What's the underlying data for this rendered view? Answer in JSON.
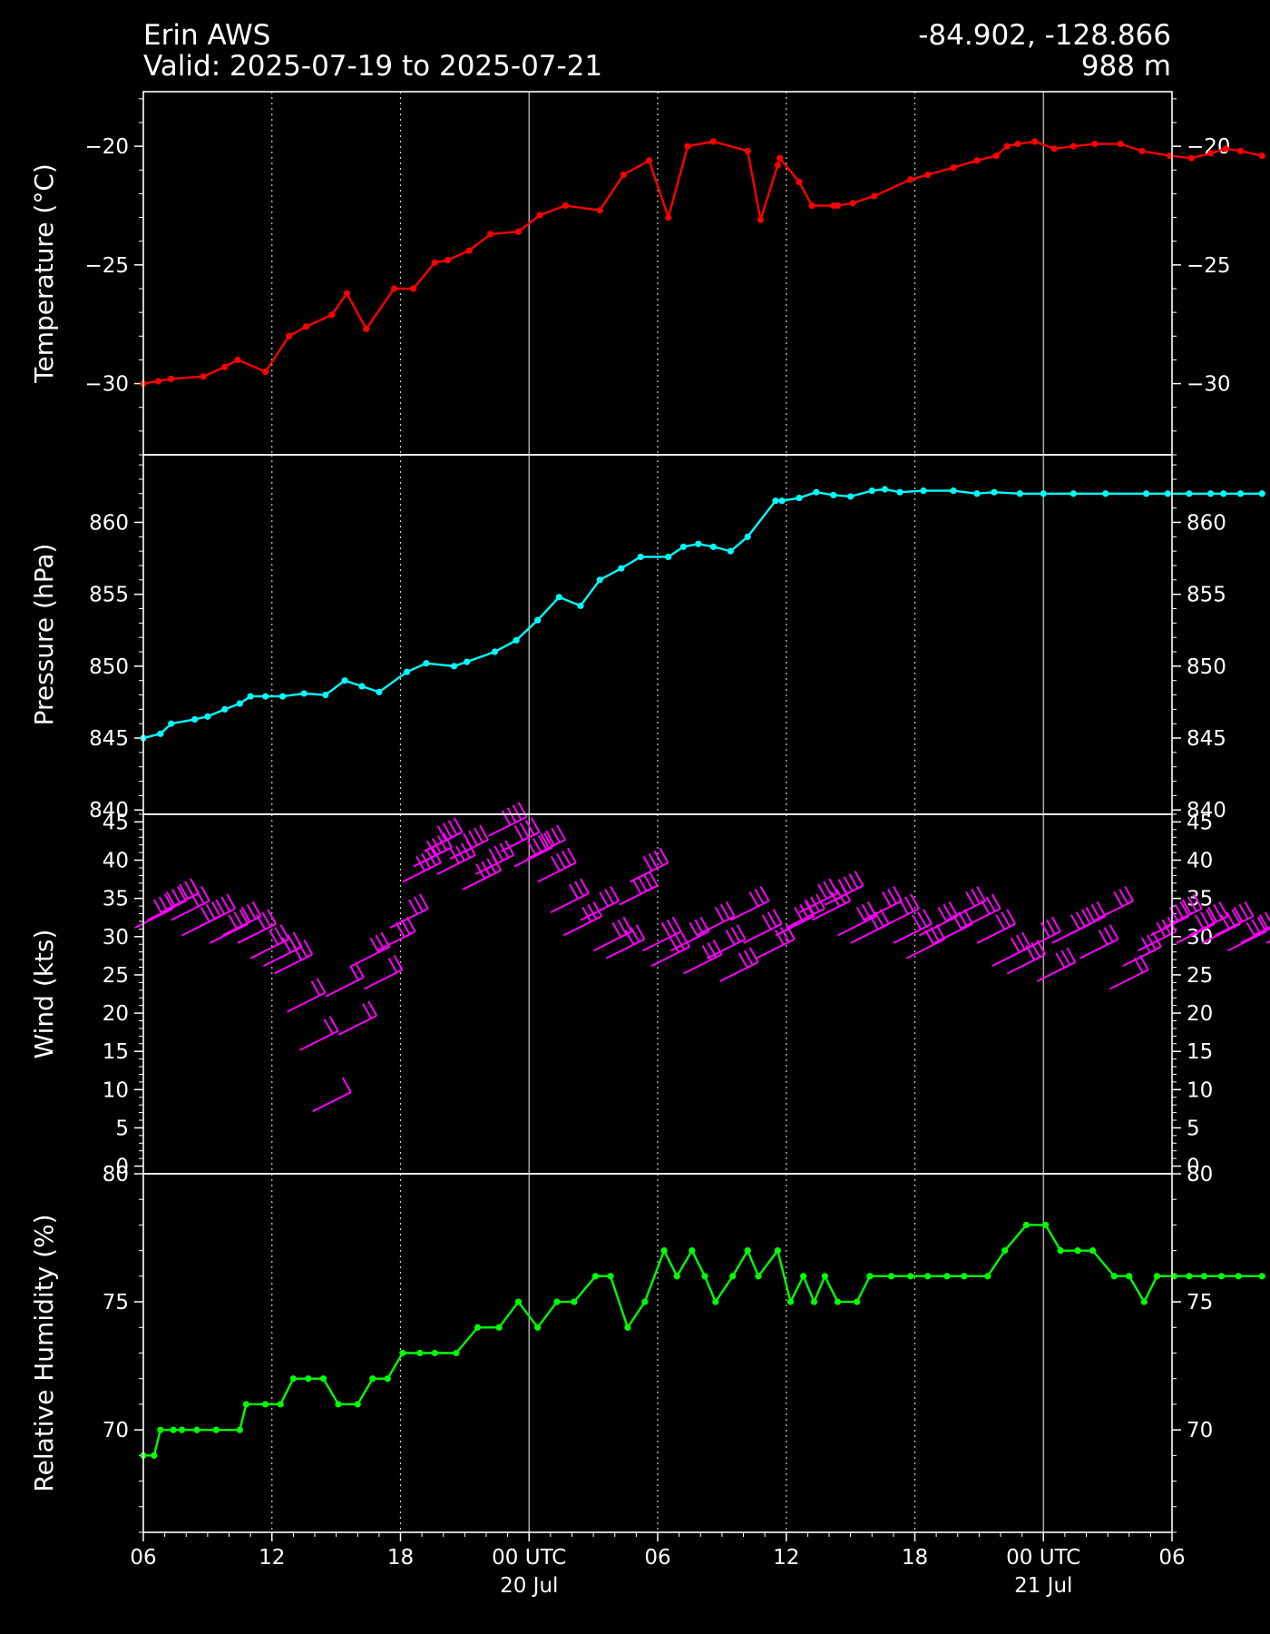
{
  "header": {
    "station": "Erin AWS",
    "valid": "Valid: 2025-07-19 to 2025-07-21",
    "coords": "-84.902, -128.866",
    "elevation": "988 m"
  },
  "colors": {
    "background": "#000000",
    "temperature": "#ff0000",
    "pressure": "#00ffff",
    "wind": "#ff00ff",
    "humidity": "#00ff00",
    "axes": "#ffffff"
  },
  "chart_data": [
    {
      "type": "line",
      "ylabel": "Temperature ($^\\circ$C)",
      "ylabel_display": "Temperature (°C)",
      "ylim": [
        -33.0,
        -17.7
      ],
      "yticks": [
        -30,
        -25,
        -20
      ],
      "ytick_labels": [
        "−30",
        "−25",
        "−20"
      ],
      "color": "#ff0000",
      "x_hours": [
        0,
        0.7,
        1.3,
        2.8,
        3.8,
        4.4,
        5.7,
        6.8,
        7.6,
        8.8,
        9.5,
        10.4,
        11.7,
        12.6,
        13.6,
        14.2,
        15.2,
        16.2,
        17.5,
        18.5,
        19.7,
        21.3,
        22.4,
        23.6,
        24.5,
        25.4,
        26.6,
        28.2,
        28.8,
        29.6,
        29.7,
        30.6,
        31.2,
        32.2,
        32.4,
        33.1,
        34.1,
        35.8,
        36.6,
        37.8,
        38.9,
        39.8,
        40.3,
        40.8,
        41.6,
        42.5,
        43.4,
        44.4,
        45.6,
        46.6,
        47.9,
        48.9,
        49.8,
        50.5,
        51.2,
        52.2
      ],
      "values": [
        -30.0,
        -29.9,
        -29.8,
        -29.7,
        -29.3,
        -29.0,
        -29.5,
        -28.0,
        -27.6,
        -27.1,
        -26.2,
        -27.7,
        -26.0,
        -26.0,
        -24.9,
        -24.8,
        -24.4,
        -23.7,
        -23.6,
        -22.9,
        -22.5,
        -22.7,
        -21.2,
        -20.6,
        -23.0,
        -20.0,
        -19.8,
        -20.2,
        -23.1,
        -20.8,
        -20.5,
        -21.5,
        -22.5,
        -22.5,
        -22.5,
        -22.4,
        -22.1,
        -21.4,
        -21.2,
        -20.9,
        -20.6,
        -20.4,
        -20.0,
        -19.9,
        -19.8,
        -20.1,
        -20.0,
        -19.9,
        -19.9,
        -20.2,
        -20.4,
        -20.5,
        -20.3,
        -20.1,
        -20.2,
        -20.4
      ]
    },
    {
      "type": "line",
      "ylabel": "Pressure (hPa)",
      "ylim": [
        839.7,
        864.7
      ],
      "yticks": [
        840,
        845,
        850,
        855,
        860
      ],
      "ytick_labels": [
        "840",
        "845",
        "850",
        "855",
        "860"
      ],
      "color": "#00ffff",
      "x_hours": [
        0,
        0.8,
        1.3,
        2.4,
        3.0,
        3.8,
        4.5,
        5.0,
        5.7,
        6.5,
        7.5,
        8.5,
        9.4,
        10.2,
        11.0,
        12.3,
        13.2,
        14.5,
        15.1,
        16.4,
        17.4,
        18.4,
        19.4,
        20.4,
        21.3,
        22.3,
        23.2,
        24.5,
        25.2,
        25.9,
        26.6,
        27.4,
        28.2,
        29.5,
        29.8,
        30.6,
        31.4,
        32.2,
        33.0,
        34.0,
        34.6,
        35.3,
        36.4,
        37.8,
        38.9,
        39.7,
        40.9,
        42.0,
        43.4,
        44.9,
        46.8,
        47.8,
        48.8,
        49.8,
        50.4,
        51.2,
        52.2
      ],
      "values": [
        845.0,
        845.3,
        846.0,
        846.3,
        846.5,
        847.0,
        847.4,
        847.9,
        847.9,
        847.9,
        848.1,
        848.0,
        849.0,
        848.6,
        848.2,
        849.6,
        850.2,
        850.0,
        850.3,
        851.0,
        851.8,
        853.2,
        854.8,
        854.2,
        856.0,
        856.8,
        857.6,
        857.6,
        858.3,
        858.5,
        858.3,
        858.0,
        859.0,
        861.5,
        861.5,
        861.7,
        862.1,
        861.9,
        861.8,
        862.2,
        862.3,
        862.1,
        862.2,
        862.2,
        862.0,
        862.1,
        862.0,
        862.0,
        862.0,
        862.0,
        862.0,
        862.0,
        862.0,
        862.0,
        862.0,
        862.0,
        862.0
      ]
    },
    {
      "type": "scatter",
      "mark": "wind-barbs",
      "ylabel": "Wind (kts)",
      "ylim": [
        -1.0,
        46.0
      ],
      "yticks": [
        0,
        5,
        10,
        15,
        20,
        25,
        30,
        35,
        40,
        45
      ],
      "ytick_labels": [
        "0",
        "5",
        "10",
        "15",
        "20",
        "25",
        "30",
        "35",
        "40",
        "45"
      ],
      "color": "#ff00ff",
      "x_hours": [
        0.2,
        0.8,
        1.4,
        1.9,
        2.4,
        3.1,
        3.7,
        4.3,
        5.0,
        5.6,
        6.2,
        6.7,
        7.3,
        7.9,
        8.5,
        9.1,
        9.7,
        10.3,
        10.9,
        11.5,
        12.1,
        12.7,
        13.2,
        13.7,
        14.3,
        14.9,
        15.5,
        16.1,
        16.7,
        17.3,
        17.9,
        18.5,
        19.0,
        19.6,
        20.2,
        21.0,
        21.6,
        22.2,
        22.8,
        23.3,
        23.9,
        24.3,
        25.2,
        25.8,
        26.4,
        26.9,
        27.5,
        28.0,
        28.6,
        29.2,
        30.1,
        30.6,
        31.2,
        31.8,
        32.4,
        33.0,
        33.6,
        34.2,
        35.0,
        35.6,
        36.2,
        36.8,
        37.5,
        38.1,
        38.8,
        39.5,
        40.2,
        40.9,
        41.6,
        42.3,
        43.0,
        43.7,
        44.3,
        45.0,
        45.7,
        46.3,
        47.0,
        47.6,
        48.2,
        48.8,
        49.4,
        50.0,
        50.6,
        51.2,
        51.8,
        52.4,
        53.0
      ],
      "values": [
        32,
        33,
        34,
        33,
        31,
        32,
        30,
        31,
        30,
        28,
        27,
        26,
        21,
        16,
        8,
        23,
        18,
        27,
        24,
        29,
        32,
        38,
        40,
        42,
        39,
        41,
        37,
        39,
        44,
        42,
        40,
        41,
        38,
        34,
        31,
        33,
        29,
        28,
        35,
        38,
        29,
        27,
        29,
        26,
        31,
        28,
        25,
        33,
        30,
        28,
        31,
        32,
        34,
        33,
        35,
        31,
        30,
        33,
        32,
        30,
        28,
        31,
        30,
        33,
        32,
        30,
        27,
        26,
        29,
        25,
        30,
        31,
        28,
        33,
        24,
        27,
        29,
        31,
        32,
        30,
        31,
        30,
        31,
        29,
        30,
        31,
        30
      ]
    },
    {
      "type": "line",
      "ylabel": "Relative Humidity (%)",
      "ylim": [
        66.0,
        80.0
      ],
      "yticks": [
        70,
        75,
        80
      ],
      "ytick_labels": [
        "70",
        "75",
        "80"
      ],
      "color": "#00ff00",
      "x_hours": [
        0,
        0.5,
        0.8,
        1.4,
        1.8,
        2.5,
        3.4,
        4.5,
        4.8,
        5.7,
        6.4,
        7.0,
        7.7,
        8.4,
        9.1,
        10.0,
        10.7,
        11.4,
        12.1,
        12.9,
        13.6,
        14.6,
        15.6,
        16.6,
        17.5,
        18.4,
        19.3,
        20.1,
        21.1,
        21.8,
        22.6,
        23.4,
        24.3,
        24.9,
        25.6,
        26.2,
        26.7,
        27.5,
        28.2,
        28.7,
        29.6,
        30.2,
        30.8,
        31.3,
        31.8,
        32.4,
        33.3,
        33.9,
        34.9,
        35.8,
        36.6,
        37.5,
        38.3,
        39.4,
        40.2,
        41.2,
        42.1,
        42.8,
        43.6,
        44.3,
        45.3,
        46.0,
        46.7,
        47.3,
        48.1,
        48.8,
        49.5,
        50.3,
        51.1,
        52.2
      ],
      "values": [
        69,
        69,
        70,
        70,
        70,
        70,
        70,
        70,
        71,
        71,
        71,
        72,
        72,
        72,
        71,
        71,
        72,
        72,
        73,
        73,
        73,
        73,
        74,
        74,
        75,
        74,
        75,
        75,
        76,
        76,
        74,
        75,
        77,
        76,
        77,
        76,
        75,
        76,
        77,
        76,
        77,
        75,
        76,
        75,
        76,
        75,
        75,
        76,
        76,
        76,
        76,
        76,
        76,
        76,
        77,
        78,
        78,
        77,
        77,
        77,
        76,
        76,
        75,
        76,
        76,
        76,
        76,
        76,
        76,
        76
      ]
    }
  ],
  "x_axis": {
    "range_hours": [
      0,
      48
    ],
    "ticks_hours": [
      0,
      6,
      12,
      18,
      24,
      30,
      36,
      42,
      48
    ],
    "tick_labels": [
      "06",
      "12",
      "18",
      "00 UTC",
      "06",
      "12",
      "18",
      "00 UTC",
      "06"
    ],
    "date_labels": [
      {
        "hour": 18,
        "text": "20 Jul"
      },
      {
        "hour": 42,
        "text": "21 Jul"
      }
    ],
    "grid_major_hours": [
      18,
      42
    ],
    "grid_minor_hours": [
      6,
      12,
      24,
      30,
      36
    ]
  }
}
